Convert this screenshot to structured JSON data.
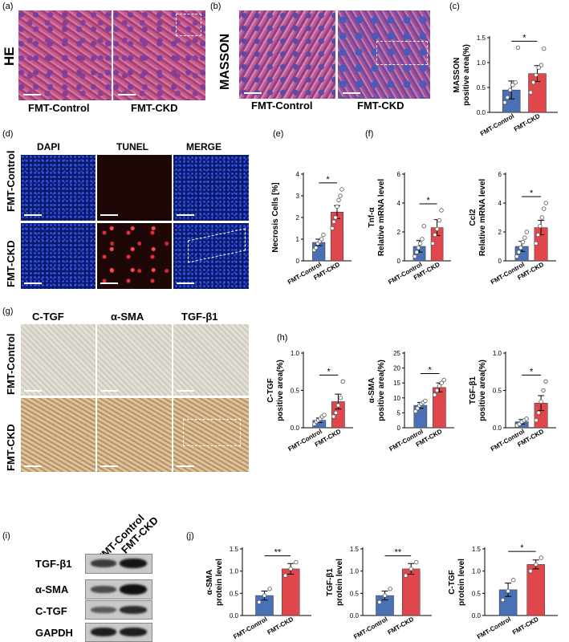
{
  "panels": {
    "a": "(a)",
    "b": "(b)",
    "c": "(c)",
    "d": "(d)",
    "e": "(e)",
    "f": "(f)",
    "g": "(g)",
    "h": "(h)",
    "i": "(i)",
    "j": "(j)"
  },
  "histology": {
    "he_label": "HE",
    "masson_label": "MASSON",
    "control_label": "FMT-Control",
    "ckd_label": "FMT-CKD"
  },
  "fluorescence": {
    "columns": [
      "DAPI",
      "TUNEL",
      "MERGE"
    ],
    "rows": [
      "FMT-Control",
      "FMT-CKD"
    ]
  },
  "ihc": {
    "columns": [
      "C-TGF",
      "α-SMA",
      "TGF-β1"
    ],
    "rows": [
      "FMT-Control",
      "FMT-CKD"
    ]
  },
  "western_blot": {
    "lanes": [
      "FMT-Control",
      "FMT-CKD"
    ],
    "proteins": [
      "TGF-β1",
      "α-SMA",
      "C-TGF",
      "GAPDH"
    ]
  },
  "colors": {
    "control": "#4a70b5",
    "ckd": "#e0474c"
  },
  "chart_data": [
    {
      "id": "c",
      "type": "bar",
      "categories": [
        "FMT-Control",
        "FMT-CKD"
      ],
      "values": [
        0.45,
        0.78
      ],
      "errors": [
        0.18,
        0.16
      ],
      "points": [
        [
          0.2,
          0.3,
          0.45,
          0.55,
          0.6,
          1.3
        ],
        [
          0.4,
          0.6,
          0.75,
          0.9,
          0.95,
          1.28
        ]
      ],
      "ylabel_lines": [
        "MASSON",
        "positive area(%)"
      ],
      "ylim": [
        0,
        1.5
      ],
      "yticks": [
        0.0,
        0.5,
        1.0,
        1.5
      ],
      "significance": "*"
    },
    {
      "id": "e",
      "type": "bar",
      "categories": [
        "FMT-Control",
        "FMT-CKD"
      ],
      "values": [
        0.85,
        2.25
      ],
      "errors": [
        0.15,
        0.3
      ],
      "points": [
        [
          0.5,
          0.6,
          0.8,
          0.9,
          1.0,
          1.2
        ],
        [
          1.5,
          1.8,
          2.0,
          2.5,
          2.8,
          3.0,
          3.3
        ]
      ],
      "ylabel_lines": [
        "Necrosis Cells [%]"
      ],
      "ylim": [
        0,
        4
      ],
      "yticks": [
        0,
        1,
        2,
        3,
        4
      ],
      "significance": "*"
    },
    {
      "id": "f1",
      "type": "bar",
      "categories": [
        "FMT-Control",
        "FMT-CKD"
      ],
      "values": [
        1.0,
        2.3
      ],
      "errors": [
        0.4,
        0.55
      ],
      "points": [
        [
          0.3,
          0.6,
          0.9,
          1.2,
          1.5,
          2.4
        ],
        [
          1.2,
          1.8,
          2.2,
          2.8,
          3.5
        ]
      ],
      "ylabel_lines": [
        "Tnf-α",
        "Relative mRNA level"
      ],
      "ylim": [
        0,
        6
      ],
      "yticks": [
        0,
        2,
        4,
        6
      ],
      "significance": "*"
    },
    {
      "id": "f2",
      "type": "bar",
      "categories": [
        "FMT-Control",
        "FMT-CKD"
      ],
      "values": [
        1.0,
        2.3
      ],
      "errors": [
        0.35,
        0.5
      ],
      "points": [
        [
          0.3,
          0.6,
          0.9,
          1.3,
          1.6,
          2.0
        ],
        [
          1.2,
          1.8,
          2.4,
          3.0,
          3.6,
          4.0
        ]
      ],
      "ylabel_lines": [
        "Ccl2",
        "Relative mRNA level"
      ],
      "ylim": [
        0,
        6
      ],
      "yticks": [
        0,
        2,
        4,
        6
      ],
      "significance": "*"
    },
    {
      "id": "h1",
      "type": "bar",
      "categories": [
        "FMT-Control",
        "FMT-CKD"
      ],
      "values": [
        0.1,
        0.35
      ],
      "errors": [
        0.03,
        0.1
      ],
      "points": [
        [
          0.05,
          0.08,
          0.1,
          0.12,
          0.15,
          0.17
        ],
        [
          0.15,
          0.2,
          0.3,
          0.4,
          0.62
        ]
      ],
      "ylabel_lines": [
        "C-TGF",
        "positive area(%)"
      ],
      "ylim": [
        0,
        1.0
      ],
      "yticks": [
        0.0,
        0.5,
        1.0
      ],
      "significance": "*"
    },
    {
      "id": "h2",
      "type": "bar",
      "categories": [
        "FMT-Control",
        "FMT-CKD"
      ],
      "values": [
        7.5,
        13.5
      ],
      "errors": [
        1.0,
        1.5
      ],
      "points": [
        [
          5.5,
          6.5,
          7.5,
          8.0,
          8.5,
          9.0
        ],
        [
          11.0,
          12.5,
          14.0,
          15.0,
          16.0
        ]
      ],
      "ylabel_lines": [
        "α-SMA",
        "positive area(%)"
      ],
      "ylim": [
        0,
        25
      ],
      "yticks": [
        0,
        5,
        10,
        15,
        20,
        25
      ],
      "significance": "*"
    },
    {
      "id": "h3",
      "type": "bar",
      "categories": [
        "FMT-Control",
        "FMT-CKD"
      ],
      "values": [
        0.08,
        0.33
      ],
      "errors": [
        0.03,
        0.1
      ],
      "points": [
        [
          0.03,
          0.05,
          0.08,
          0.1,
          0.12
        ],
        [
          0.1,
          0.2,
          0.35,
          0.5,
          0.62
        ]
      ],
      "ylabel_lines": [
        "TGF-β1",
        "positive area(%)"
      ],
      "ylim": [
        0,
        1.0
      ],
      "yticks": [
        0.0,
        0.5,
        1.0
      ],
      "significance": "*"
    },
    {
      "id": "j1",
      "type": "bar",
      "categories": [
        "FMT-Control",
        "FMT-CKD"
      ],
      "values": [
        0.45,
        1.05
      ],
      "errors": [
        0.1,
        0.12
      ],
      "points": [
        [
          0.3,
          0.45,
          0.6
        ],
        [
          0.9,
          1.05,
          1.2
        ]
      ],
      "ylabel_lines": [
        "α-SMA",
        "protein level"
      ],
      "ylim": [
        0,
        1.5
      ],
      "yticks": [
        0.0,
        0.5,
        1.0,
        1.5
      ],
      "significance": "**"
    },
    {
      "id": "j2",
      "type": "bar",
      "categories": [
        "FMT-Control",
        "FMT-CKD"
      ],
      "values": [
        0.45,
        1.05
      ],
      "errors": [
        0.1,
        0.12
      ],
      "points": [
        [
          0.3,
          0.45,
          0.6
        ],
        [
          0.9,
          1.05,
          1.2
        ]
      ],
      "ylabel_lines": [
        "TGF-β1",
        "protein level"
      ],
      "ylim": [
        0,
        1.5
      ],
      "yticks": [
        0.0,
        0.5,
        1.0,
        1.5
      ],
      "significance": "**"
    },
    {
      "id": "j3",
      "type": "bar",
      "categories": [
        "FMT-Control",
        "FMT-CKD"
      ],
      "values": [
        0.58,
        1.15
      ],
      "errors": [
        0.15,
        0.1
      ],
      "points": [
        [
          0.35,
          0.55,
          0.8
        ],
        [
          1.0,
          1.15,
          1.3
        ]
      ],
      "ylabel_lines": [
        "C-TGF",
        "protein level"
      ],
      "ylim": [
        0,
        1.5
      ],
      "yticks": [
        0.0,
        0.5,
        1.0,
        1.5
      ],
      "significance": "*"
    }
  ]
}
